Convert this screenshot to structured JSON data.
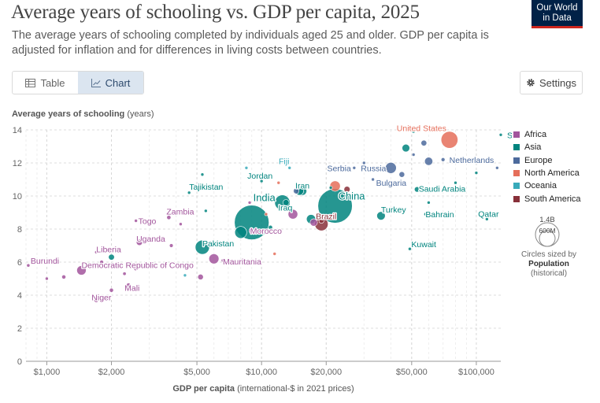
{
  "header": {
    "title": "Average years of schooling vs. GDP per capita, 2025",
    "subtitle": "The average years of schooling completed by individuals aged 25 and older. GDP per capita is adjusted for inflation and for differences in living costs between countries.",
    "logo_line1": "Our World",
    "logo_line2": "in Data"
  },
  "tabs": [
    {
      "label": "Table",
      "icon": "table-icon",
      "active": false
    },
    {
      "label": "Chart",
      "icon": "chart-icon",
      "active": true
    }
  ],
  "settings_label": "Settings",
  "colors": {
    "Africa": "#a2559c",
    "Asia": "#00847e",
    "Europe": "#4c6a9c",
    "North America": "#e56e5a",
    "Oceania": "#38aaba",
    "South America": "#883039"
  },
  "chart_data": {
    "type": "scatter",
    "title": "Average years of schooling vs. GDP per capita, 2025",
    "ylabel": "Average years of schooling",
    "ylabel_unit": "(years)",
    "xlabel": "GDP per capita",
    "xlabel_unit": "(international-$ in 2021 prices)",
    "xscale": "log",
    "xlim": [
      800,
      130000
    ],
    "ylim": [
      0,
      14
    ],
    "yticks": [
      0,
      2,
      4,
      6,
      8,
      10,
      12,
      14
    ],
    "xticks": [
      1000,
      2000,
      5000,
      10000,
      20000,
      50000,
      100000
    ],
    "xtick_labels": [
      "$1,000",
      "$2,000",
      "$5,000",
      "$10,000",
      "$20,000",
      "$50,000",
      "$100,000"
    ],
    "legend": [
      "Africa",
      "Asia",
      "Europe",
      "North America",
      "Oceania",
      "South America"
    ],
    "size_legend": {
      "max_label": "1.4B",
      "min_label": "600M",
      "note": "Circles sized by",
      "variable": "Population",
      "variable_note": "(historical)"
    },
    "points": [
      {
        "name": "United States",
        "region": "North America",
        "gdp": 75000,
        "years": 13.4,
        "pop": 340,
        "label": true
      },
      {
        "name": "Singapore",
        "region": "Asia",
        "gdp": 130000,
        "years": 13.7,
        "pop": 6,
        "label": true
      },
      {
        "name": "Netherlands",
        "region": "Europe",
        "gdp": 70000,
        "years": 12.2,
        "pop": 18,
        "label": true
      },
      {
        "name": "Fiji",
        "region": "Oceania",
        "gdp": 13500,
        "years": 11.7,
        "pop": 1,
        "label": true
      },
      {
        "name": "Serbia",
        "region": "Europe",
        "gdp": 27000,
        "years": 11.7,
        "pop": 7,
        "label": true
      },
      {
        "name": "Russia",
        "region": "Europe",
        "gdp": 40000,
        "years": 11.7,
        "pop": 144,
        "label": true
      },
      {
        "name": "Jordan",
        "region": "Asia",
        "gdp": 10000,
        "years": 10.9,
        "pop": 11,
        "label": true
      },
      {
        "name": "Bulgaria",
        "region": "Europe",
        "gdp": 33000,
        "years": 11.0,
        "pop": 6,
        "label": true
      },
      {
        "name": "Iran",
        "region": "Asia",
        "gdp": 15500,
        "years": 10.3,
        "pop": 90,
        "label": true
      },
      {
        "name": "Saudi Arabia",
        "region": "Asia",
        "gdp": 53000,
        "years": 10.4,
        "pop": 35,
        "label": true
      },
      {
        "name": "China",
        "region": "Asia",
        "gdp": 22000,
        "years": 9.4,
        "pop": 1410,
        "label": true
      },
      {
        "name": "Tajikistan",
        "region": "Asia",
        "gdp": 4600,
        "years": 10.2,
        "pop": 10,
        "label": true
      },
      {
        "name": "India",
        "region": "Asia",
        "gdp": 9000,
        "years": 8.4,
        "pop": 1430,
        "label": true
      },
      {
        "name": "Iraq",
        "region": "Asia",
        "gdp": 13000,
        "years": 9.6,
        "pop": 45,
        "label": true
      },
      {
        "name": "Brazil",
        "region": "South America",
        "gdp": 19000,
        "years": 8.3,
        "pop": 212,
        "label": true
      },
      {
        "name": "Turkey",
        "region": "Asia",
        "gdp": 36000,
        "years": 8.8,
        "pop": 86,
        "label": true
      },
      {
        "name": "Bahrain",
        "region": "Asia",
        "gdp": 58000,
        "years": 8.9,
        "pop": 1.5,
        "label": true
      },
      {
        "name": "Qatar",
        "region": "Asia",
        "gdp": 112000,
        "years": 8.6,
        "pop": 3,
        "label": true
      },
      {
        "name": "Togo",
        "region": "Africa",
        "gdp": 2600,
        "years": 8.5,
        "pop": 9,
        "label": true
      },
      {
        "name": "Zambia",
        "region": "Africa",
        "gdp": 3700,
        "years": 8.7,
        "pop": 21,
        "label": true
      },
      {
        "name": "Morocco",
        "region": "Africa",
        "gdp": 9000,
        "years": 7.9,
        "pop": 38,
        "label": true
      },
      {
        "name": "Pakistan",
        "region": "Asia",
        "gdp": 5300,
        "years": 6.9,
        "pop": 240,
        "label": true
      },
      {
        "name": "Uganda",
        "region": "Africa",
        "gdp": 2700,
        "years": 7.2,
        "pop": 48,
        "label": true
      },
      {
        "name": "Kuwait",
        "region": "Asia",
        "gdp": 49000,
        "years": 6.8,
        "pop": 4.5,
        "label": true
      },
      {
        "name": "Mauritania",
        "region": "Africa",
        "gdp": 6600,
        "years": 6.1,
        "pop": 5,
        "label": true
      },
      {
        "name": "Liberia",
        "region": "Africa",
        "gdp": 1700,
        "years": 6.6,
        "pop": 5,
        "label": true
      },
      {
        "name": "Burundi",
        "region": "Africa",
        "gdp": 820,
        "years": 5.8,
        "pop": 13,
        "label": true
      },
      {
        "name": "Democratic Republic of Congo",
        "region": "Africa",
        "gdp": 1450,
        "years": 5.5,
        "pop": 105,
        "label": true
      },
      {
        "name": "Mali",
        "region": "Africa",
        "gdp": 2400,
        "years": 4.6,
        "pop": 23,
        "label": true
      },
      {
        "name": "Niger",
        "region": "Africa",
        "gdp": 1700,
        "years": 3.7,
        "pop": 26,
        "label": true
      },
      {
        "name": "",
        "region": "Asia",
        "gdp": 47000,
        "years": 12.9,
        "pop": 70,
        "label": false
      },
      {
        "name": "",
        "region": "Europe",
        "gdp": 51000,
        "years": 12.5,
        "pop": 6,
        "label": false
      },
      {
        "name": "",
        "region": "Asia",
        "gdp": 51000,
        "years": 13.9,
        "pop": 10,
        "label": false
      },
      {
        "name": "",
        "region": "Asia",
        "gdp": 68000,
        "years": 14.0,
        "pop": 6,
        "label": false
      },
      {
        "name": "",
        "region": "Europe",
        "gdp": 57000,
        "years": 13.2,
        "pop": 40,
        "label": false
      },
      {
        "name": "",
        "region": "Europe",
        "gdp": 60000,
        "years": 12.1,
        "pop": 80,
        "label": false
      },
      {
        "name": "",
        "region": "Europe",
        "gdp": 45000,
        "years": 11.3,
        "pop": 38,
        "label": false
      },
      {
        "name": "",
        "region": "Europe",
        "gdp": 30000,
        "years": 12.0,
        "pop": 10,
        "label": false
      },
      {
        "name": "",
        "region": "North America",
        "gdp": 22000,
        "years": 10.6,
        "pop": 130,
        "label": false
      },
      {
        "name": "",
        "region": "South America",
        "gdp": 25000,
        "years": 10.4,
        "pop": 45,
        "label": false
      },
      {
        "name": "",
        "region": "Europe",
        "gdp": 14500,
        "years": 10.3,
        "pop": 38,
        "label": false
      },
      {
        "name": "",
        "region": "Asia",
        "gdp": 15000,
        "years": 10.3,
        "pop": 85,
        "label": false
      },
      {
        "name": "",
        "region": "Asia",
        "gdp": 12500,
        "years": 9.6,
        "pop": 280,
        "label": false
      },
      {
        "name": "",
        "region": "Asia",
        "gdp": 17000,
        "years": 8.6,
        "pop": 100,
        "label": false
      },
      {
        "name": "",
        "region": "Africa",
        "gdp": 17500,
        "years": 8.4,
        "pop": 65,
        "label": false
      },
      {
        "name": "",
        "region": "Africa",
        "gdp": 14000,
        "years": 8.9,
        "pop": 110,
        "label": false
      },
      {
        "name": "",
        "region": "South America",
        "gdp": 19000,
        "years": 8.5,
        "pop": 30,
        "label": false
      },
      {
        "name": "",
        "region": "Asia",
        "gdp": 8000,
        "years": 7.8,
        "pop": 170,
        "label": false
      },
      {
        "name": "",
        "region": "Africa",
        "gdp": 6000,
        "years": 6.2,
        "pop": 120,
        "label": false
      },
      {
        "name": "",
        "region": "Africa",
        "gdp": 5200,
        "years": 5.1,
        "pop": 38,
        "label": false
      },
      {
        "name": "",
        "region": "Oceania",
        "gdp": 4400,
        "years": 5.2,
        "pop": 10,
        "label": false
      },
      {
        "name": "",
        "region": "Asia",
        "gdp": 2000,
        "years": 6.3,
        "pop": 42,
        "label": false
      },
      {
        "name": "",
        "region": "Africa",
        "gdp": 1200,
        "years": 5.1,
        "pop": 20,
        "label": false
      },
      {
        "name": "",
        "region": "Africa",
        "gdp": 2600,
        "years": 5.6,
        "pop": 20,
        "label": false
      },
      {
        "name": "",
        "region": "Africa",
        "gdp": 2000,
        "years": 4.3,
        "pop": 20,
        "label": false
      },
      {
        "name": "",
        "region": "Oceania",
        "gdp": 8500,
        "years": 11.7,
        "pop": 1,
        "label": false
      },
      {
        "name": "",
        "region": "Asia",
        "gdp": 5300,
        "years": 11.3,
        "pop": 10,
        "label": false
      },
      {
        "name": "",
        "region": "North America",
        "gdp": 12000,
        "years": 10.8,
        "pop": 5,
        "label": false
      },
      {
        "name": "",
        "region": "Asia",
        "gdp": 21000,
        "years": 10.5,
        "pop": 10,
        "label": false
      },
      {
        "name": "",
        "region": "Asia",
        "gdp": 60000,
        "years": 9.6,
        "pop": 5,
        "label": false
      },
      {
        "name": "",
        "region": "Asia",
        "gdp": 100000,
        "years": 11.4,
        "pop": 3,
        "label": false
      },
      {
        "name": "",
        "region": "Asia",
        "gdp": 80000,
        "years": 10.8,
        "pop": 10,
        "label": false
      },
      {
        "name": "",
        "region": "Europe",
        "gdp": 125000,
        "years": 11.7,
        "pop": 2,
        "label": false
      },
      {
        "name": "",
        "region": "North America",
        "gdp": 10500,
        "years": 8.9,
        "pop": 12,
        "label": false
      },
      {
        "name": "",
        "region": "Asia",
        "gdp": 11000,
        "years": 8.1,
        "pop": 22,
        "label": false
      },
      {
        "name": "",
        "region": "Africa",
        "gdp": 3800,
        "years": 7.0,
        "pop": 17,
        "label": false
      },
      {
        "name": "",
        "region": "Africa",
        "gdp": 3000,
        "years": 7.4,
        "pop": 8,
        "label": false
      },
      {
        "name": "",
        "region": "Africa",
        "gdp": 4200,
        "years": 8.3,
        "pop": 5,
        "label": false
      },
      {
        "name": "",
        "region": "North America",
        "gdp": 11500,
        "years": 6.5,
        "pop": 12,
        "label": false
      },
      {
        "name": "",
        "region": "Africa",
        "gdp": 1800,
        "years": 6.0,
        "pop": 18,
        "label": false
      },
      {
        "name": "",
        "region": "Africa",
        "gdp": 1000,
        "years": 5.0,
        "pop": 7,
        "label": false
      },
      {
        "name": "",
        "region": "Africa",
        "gdp": 2300,
        "years": 5.3,
        "pop": 14,
        "label": false
      },
      {
        "name": "",
        "region": "Asia",
        "gdp": 5500,
        "years": 9.1,
        "pop": 8,
        "label": false
      },
      {
        "name": "",
        "region": "Africa",
        "gdp": 8800,
        "years": 9.6,
        "pop": 3,
        "label": false
      }
    ]
  }
}
